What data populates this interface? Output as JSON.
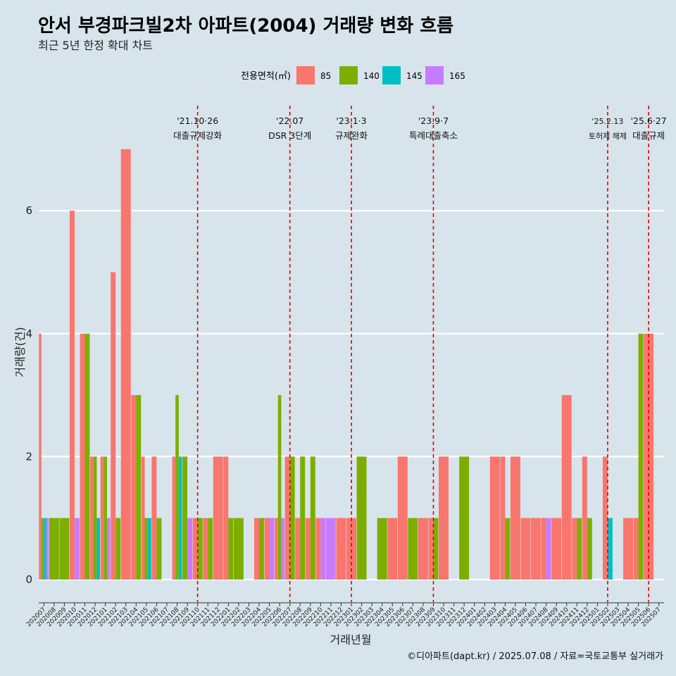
{
  "header": {
    "title": "안서 부경파크빌2차 아파트(2004) 거래량 변화 흐름",
    "subtitle": "최근 5년 한정 확대 차트"
  },
  "caption": "©디아파트(dapt.kr) / 2025.07.08 / 자료=국토교통부 실거래가",
  "legend": {
    "title": "전용면적(㎡)",
    "items": [
      {
        "label": "85",
        "color": "#F8766D"
      },
      {
        "label": "140",
        "color": "#7CAE00"
      },
      {
        "label": "145",
        "color": "#00BFC4"
      },
      {
        "label": "165",
        "color": "#C77CFF"
      }
    ]
  },
  "chart_data": {
    "type": "bar",
    "title": "안서 부경파크빌2차 아파트(2004) 거래량 변화 흐름",
    "xlabel": "거래년월",
    "ylabel": "거래량(건)",
    "ylim": [
      0,
      7.4
    ],
    "yticks": [
      0,
      2,
      4,
      6
    ],
    "grid": true,
    "legend_position": "top",
    "categories": [
      "202007",
      "202008",
      "202009",
      "202010",
      "202011",
      "202012",
      "202101",
      "202102",
      "202103",
      "202104",
      "202105",
      "202106",
      "202107",
      "202108",
      "202109",
      "202110",
      "202111",
      "202112",
      "202201",
      "202202",
      "202203",
      "202204",
      "202205",
      "202206",
      "202207",
      "202208",
      "202209",
      "202210",
      "202211",
      "202212",
      "202301",
      "202302",
      "202303",
      "202304",
      "202305",
      "202306",
      "202307",
      "202308",
      "202309",
      "202310",
      "202311",
      "202312",
      "202401",
      "202402",
      "202403",
      "202404",
      "202405",
      "202406",
      "202407",
      "202408",
      "202409",
      "202410",
      "202411",
      "202412",
      "202501",
      "202502",
      "202503",
      "202504",
      "202505",
      "202506",
      "202507"
    ],
    "series": [
      {
        "name": "85",
        "values": [
          4,
          0,
          0,
          6,
          4,
          2,
          2,
          5,
          7,
          3,
          2,
          2,
          0,
          2,
          0,
          1,
          1,
          2,
          2,
          0,
          0,
          1,
          1,
          1,
          2,
          1,
          1,
          1,
          0,
          1,
          1,
          0,
          0,
          0,
          1,
          2,
          0,
          1,
          1,
          2,
          0,
          0,
          0,
          0,
          2,
          2,
          2,
          1,
          1,
          1,
          1,
          3,
          1,
          2,
          0,
          2,
          0,
          1,
          1,
          4,
          0
        ]
      },
      {
        "name": "140",
        "values": [
          1,
          1,
          1,
          0,
          4,
          2,
          2,
          1,
          0,
          3,
          1,
          1,
          0,
          3,
          2,
          1,
          1,
          0,
          1,
          1,
          0,
          1,
          0,
          3,
          2,
          2,
          2,
          0,
          0,
          0,
          0,
          2,
          0,
          1,
          0,
          0,
          1,
          0,
          1,
          0,
          0,
          2,
          0,
          0,
          0,
          1,
          0,
          0,
          0,
          0,
          0,
          0,
          1,
          1,
          0,
          0,
          0,
          0,
          4,
          0,
          0
        ]
      },
      {
        "name": "145",
        "values": [
          1,
          0,
          0,
          0,
          0,
          1,
          0,
          0,
          0,
          0,
          1,
          0,
          0,
          2,
          0,
          0,
          0,
          0,
          0,
          0,
          0,
          0,
          0,
          0,
          0,
          0,
          0,
          0,
          0,
          0,
          0,
          0,
          0,
          0,
          0,
          0,
          0,
          0,
          0,
          0,
          0,
          0,
          0,
          0,
          0,
          0,
          0,
          0,
          0,
          0,
          0,
          0,
          0,
          0,
          0,
          1,
          0,
          0,
          0,
          0,
          0
        ]
      },
      {
        "name": "165",
        "values": [
          1,
          0,
          0,
          1,
          0,
          0,
          1,
          0,
          0,
          0,
          0,
          0,
          0,
          0,
          1,
          0,
          0,
          0,
          0,
          0,
          0,
          0,
          1,
          1,
          0,
          0,
          0,
          1,
          1,
          0,
          0,
          0,
          0,
          0,
          0,
          0,
          0,
          0,
          0,
          0,
          0,
          0,
          0,
          0,
          0,
          0,
          0,
          0,
          0,
          1,
          0,
          0,
          0,
          0,
          0,
          0,
          0,
          0,
          0,
          0,
          0
        ]
      }
    ],
    "annotations": [
      {
        "x": "202110",
        "date": "'21.10·26",
        "text": "대출규제강화"
      },
      {
        "x": "202207",
        "date": "'22.07",
        "text": "DSR 3단계"
      },
      {
        "x": "202301",
        "date": "'23.1·3",
        "text": "규제완화"
      },
      {
        "x": "202309",
        "date": "'23.9·7",
        "text": "특례대출축소"
      },
      {
        "x": "202502",
        "date": "'25.2.13",
        "text": "토허제 해제"
      },
      {
        "x": "202506",
        "date": "'25.6·27",
        "text": "대출규제"
      }
    ]
  }
}
